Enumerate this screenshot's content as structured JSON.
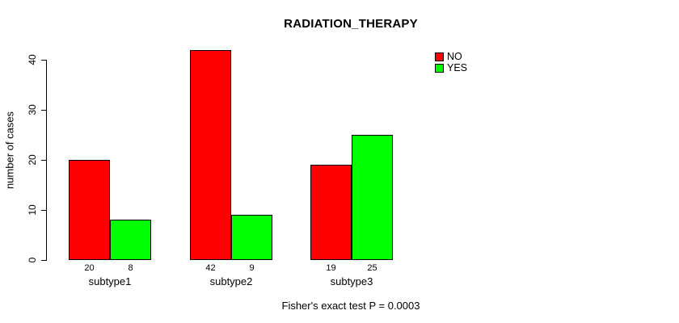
{
  "chart_data": {
    "type": "bar",
    "title": "RADIATION_THERAPY",
    "xlabel": "",
    "ylabel": "number of cases",
    "categories": [
      "subtype1",
      "subtype2",
      "subtype3"
    ],
    "series": [
      {
        "name": "NO",
        "color": "#ff0000",
        "values": [
          20,
          42,
          19
        ]
      },
      {
        "name": "YES",
        "color": "#00ff00",
        "values": [
          8,
          9,
          25
        ]
      }
    ],
    "bar_value_labels": [
      [
        "20",
        "8"
      ],
      [
        "42",
        "9"
      ],
      [
        "19",
        "25"
      ]
    ],
    "yticks": [
      0,
      10,
      20,
      30,
      40
    ],
    "ylim": [
      0,
      42
    ],
    "grid": false,
    "legend_position": "top-right",
    "legend_entries": [
      "NO",
      "YES"
    ],
    "footnote": "Fisher's exact test P = 0.0003",
    "background_color": "#ffffff",
    "axis_color": "#000000"
  }
}
